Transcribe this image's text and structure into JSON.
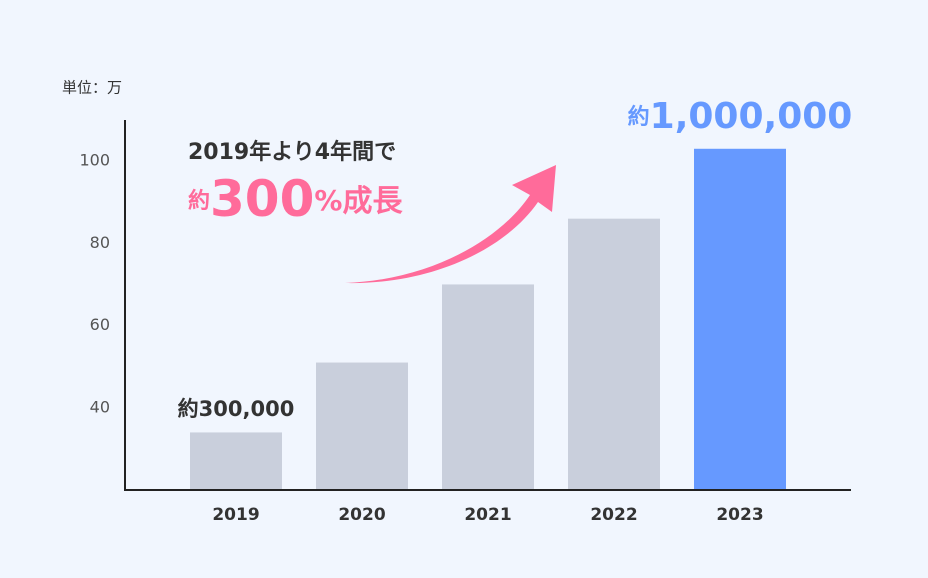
{
  "chart_data": {
    "type": "bar",
    "unit_label": "単位：万",
    "categories": [
      "2019",
      "2020",
      "2021",
      "2022",
      "2023"
    ],
    "values": [
      34,
      51,
      70,
      86,
      103
    ],
    "colors": [
      "#c9cfdc",
      "#c9cfdc",
      "#c9cfdc",
      "#c9cfdc",
      "#6699ff"
    ],
    "ylim": [
      20,
      110
    ],
    "yticks": [
      40,
      60,
      80,
      100
    ],
    "grid": false,
    "annotations": {
      "start_label": "約300,000",
      "end_label_parts": [
        "約",
        "1,000,000"
      ],
      "growth_heading": "2019年より4年間で",
      "growth_parts": [
        "約",
        "300",
        "%",
        "成長"
      ]
    }
  }
}
